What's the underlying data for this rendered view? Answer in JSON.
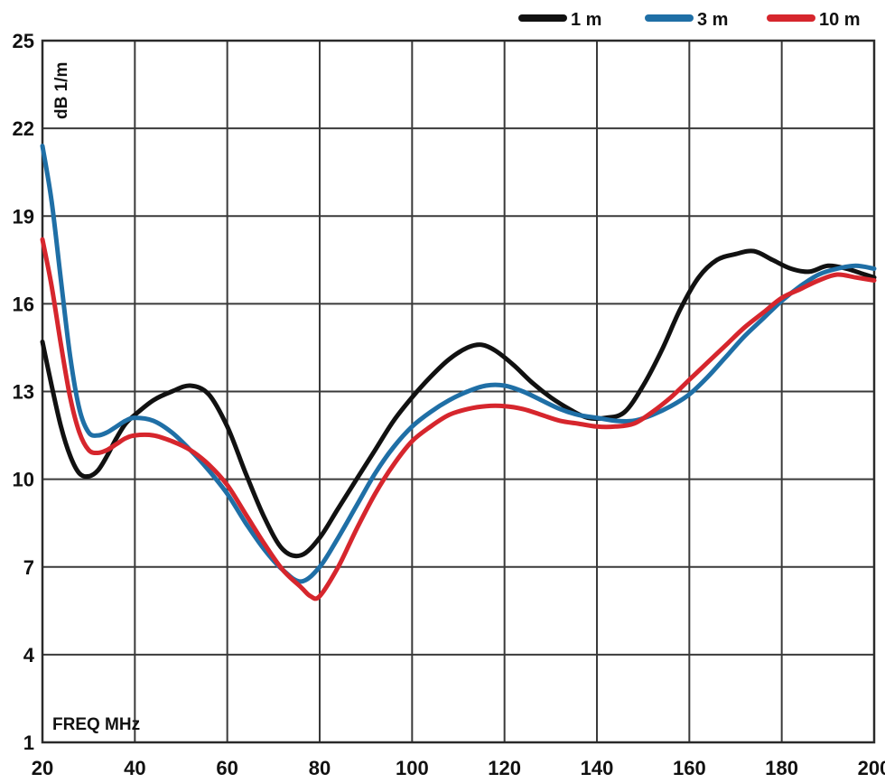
{
  "chart_data": {
    "type": "line",
    "xlabel": "FREQ MHz",
    "ylabel": "dB 1/m",
    "xlim": [
      20,
      200
    ],
    "ylim": [
      1,
      25
    ],
    "xticks": [
      20,
      40,
      60,
      80,
      100,
      120,
      140,
      160,
      180,
      200
    ],
    "yticks": [
      1,
      4,
      7,
      10,
      13,
      16,
      19,
      22,
      25
    ],
    "grid": true,
    "legend_position": "top-right",
    "series": [
      {
        "name": "1 m",
        "color": "#111111",
        "x": [
          20,
          22,
          24,
          26,
          28,
          30,
          32,
          34,
          36,
          38,
          40,
          44,
          48,
          52,
          56,
          60,
          64,
          68,
          72,
          76,
          80,
          84,
          88,
          92,
          96,
          100,
          104,
          108,
          112,
          115,
          118,
          122,
          126,
          130,
          134,
          138,
          142,
          146,
          150,
          154,
          158,
          162,
          166,
          170,
          174,
          178,
          182,
          186,
          190,
          194,
          198,
          200
        ],
        "y": [
          14.7,
          13.2,
          11.8,
          10.8,
          10.2,
          10.1,
          10.3,
          10.8,
          11.4,
          11.9,
          12.2,
          12.7,
          13.0,
          13.2,
          12.9,
          11.8,
          10.2,
          8.7,
          7.6,
          7.4,
          8.0,
          9.0,
          10.0,
          11.0,
          12.0,
          12.8,
          13.5,
          14.1,
          14.5,
          14.6,
          14.4,
          13.9,
          13.3,
          12.8,
          12.4,
          12.1,
          12.1,
          12.3,
          13.2,
          14.4,
          15.8,
          16.9,
          17.5,
          17.7,
          17.8,
          17.5,
          17.2,
          17.1,
          17.3,
          17.2,
          17.0,
          16.9
        ]
      },
      {
        "name": "3 m",
        "color": "#1f6fa6",
        "x": [
          20,
          22,
          24,
          26,
          28,
          30,
          32,
          34,
          36,
          38,
          40,
          44,
          48,
          52,
          56,
          60,
          64,
          68,
          72,
          76,
          80,
          84,
          88,
          92,
          96,
          100,
          104,
          108,
          112,
          116,
          120,
          124,
          128,
          132,
          136,
          140,
          144,
          148,
          152,
          156,
          160,
          164,
          168,
          172,
          176,
          180,
          184,
          188,
          192,
          196,
          200
        ],
        "y": [
          21.4,
          19.5,
          16.8,
          14.2,
          12.4,
          11.6,
          11.5,
          11.6,
          11.8,
          12.0,
          12.1,
          12.0,
          11.6,
          11.0,
          10.3,
          9.5,
          8.5,
          7.6,
          6.9,
          6.5,
          7.0,
          8.0,
          9.1,
          10.2,
          11.1,
          11.8,
          12.3,
          12.7,
          13.0,
          13.2,
          13.2,
          13.0,
          12.7,
          12.4,
          12.2,
          12.1,
          12.0,
          12.0,
          12.2,
          12.5,
          12.9,
          13.5,
          14.2,
          14.9,
          15.5,
          16.1,
          16.6,
          17.0,
          17.2,
          17.3,
          17.2
        ]
      },
      {
        "name": "10 m",
        "color": "#d6262d",
        "x": [
          20,
          22,
          24,
          26,
          28,
          30,
          32,
          34,
          36,
          38,
          40,
          44,
          48,
          52,
          56,
          60,
          64,
          68,
          72,
          76,
          78,
          80,
          84,
          88,
          92,
          96,
          100,
          104,
          108,
          112,
          116,
          120,
          124,
          128,
          132,
          136,
          140,
          144,
          148,
          152,
          156,
          160,
          164,
          168,
          172,
          176,
          180,
          184,
          188,
          192,
          196,
          200
        ],
        "y": [
          18.2,
          16.6,
          14.6,
          12.8,
          11.6,
          11.0,
          10.9,
          11.0,
          11.2,
          11.4,
          11.5,
          11.5,
          11.3,
          11.0,
          10.5,
          9.8,
          8.8,
          7.8,
          6.9,
          6.3,
          6.0,
          6.0,
          7.0,
          8.3,
          9.5,
          10.5,
          11.3,
          11.8,
          12.2,
          12.4,
          12.5,
          12.5,
          12.4,
          12.2,
          12.0,
          11.9,
          11.8,
          11.8,
          11.9,
          12.3,
          12.8,
          13.4,
          14.0,
          14.6,
          15.2,
          15.7,
          16.2,
          16.5,
          16.8,
          17.0,
          16.9,
          16.8
        ]
      }
    ]
  }
}
